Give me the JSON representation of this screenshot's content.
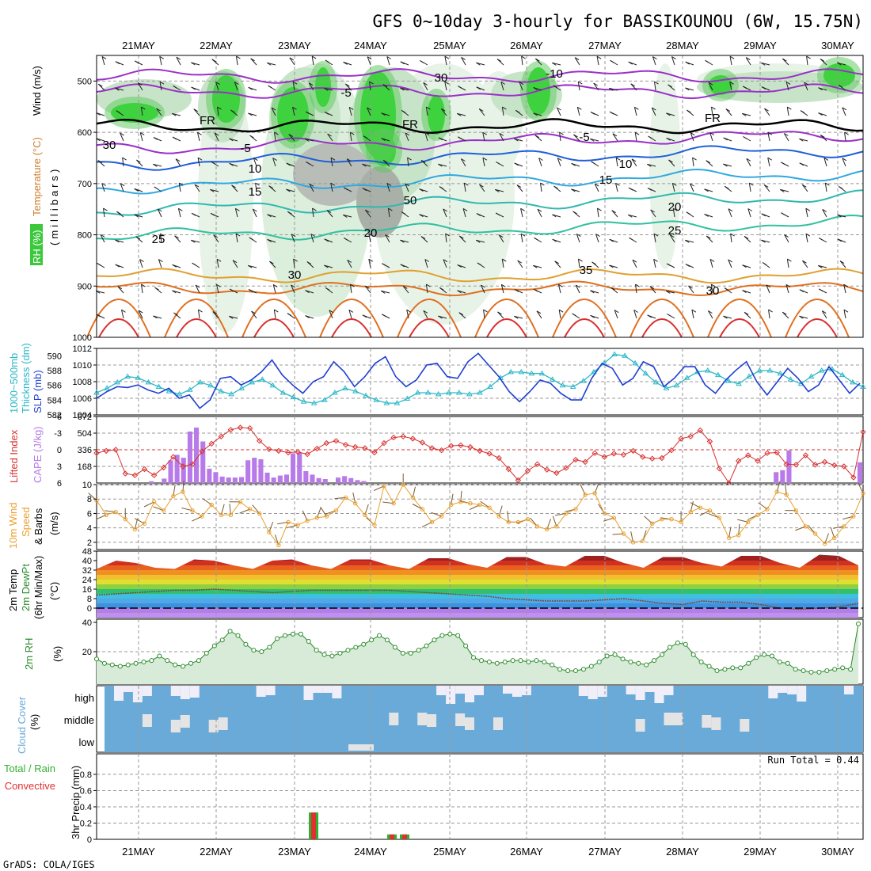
{
  "header": {
    "title": "GFS 0~10day 3-hourly for BASSIKOUNOU (6W, 15.75N)",
    "footer": "GrADS: COLA/IGES",
    "run_total": "Run Total = 0.44"
  },
  "dates": [
    "21MAY",
    "22MAY",
    "23MAY",
    "24MAY",
    "25MAY",
    "26MAY",
    "27MAY",
    "28MAY",
    "29MAY",
    "30MAY"
  ],
  "colors": {
    "slp": "#1f3fd0",
    "thickness": "#2cb8c8",
    "li": "#d83030",
    "cape": "#b77ae8",
    "wind10": "#e8a030",
    "rh2": "#2a8a2a",
    "cloud": "#6aaad8",
    "rain": "#e03030",
    "total": "#30b030"
  },
  "panel_labels": {
    "upper": {
      "rh": "RH (%)",
      "temp": "Temperature (°C)",
      "wind": "Wind (m/s)",
      "pres": "(millibars)"
    },
    "slp": {
      "left": "1000~500mb",
      "left2": "Thickness (dm)",
      "right": "SLP (mb)"
    },
    "cape": {
      "left": "Lifted Index",
      "right": "CAPE (J/kg)"
    },
    "wind10": {
      "line1": "10m Wind",
      "line2": "Speed",
      "line3": "& Barbs",
      "unit": "(m/s)"
    },
    "temp2": {
      "line1": "2m Temp",
      "line2": "2m DewPt",
      "line3": "(6hr Min/Max)",
      "unit": "(°C)"
    },
    "rh2": {
      "line1": "2m RH",
      "unit": "(%)"
    },
    "cloud": {
      "line1": "Cloud Cover",
      "unit": "(%)",
      "high": "high",
      "middle": "middle",
      "low": "low"
    },
    "precip": {
      "line1": "Total / Rain",
      "line2": "Convective",
      "line3": "3hr Precip (mm)"
    }
  },
  "chart_data": [
    {
      "type": "heatmap",
      "name": "pressure-time cross section",
      "ylabel": "(millibars)",
      "y_ticks": [
        500,
        600,
        700,
        800,
        900,
        1000
      ],
      "ylim": [
        450,
        1000
      ],
      "temperature_contours": [
        {
          "label": "-10",
          "p": 490
        },
        {
          "label": "-5",
          "p": 520
        },
        {
          "label": "FR",
          "p": 588
        },
        {
          "label": "-5",
          "p": 632
        },
        {
          "label": "10",
          "p": 662
        },
        {
          "label": "15",
          "p": 708
        },
        {
          "label": "20",
          "p": 752
        },
        {
          "label": "25",
          "p": 803
        },
        {
          "label": "30",
          "p": 880
        },
        {
          "label": "35",
          "p": 905
        }
      ],
      "contour_labels_shown": [
        "-10",
        "-5",
        "FR",
        "-5",
        "10",
        "15",
        "20",
        "25",
        "30",
        "35",
        "10",
        "15",
        "20",
        "25",
        "FR",
        "FR",
        "-5",
        "10",
        "50",
        "30",
        "30"
      ],
      "legend": [
        "RH (%)",
        "Temperature (°C)",
        "Wind (m/s)"
      ]
    },
    {
      "type": "line",
      "name": "SLP and thickness",
      "left_axis": {
        "label": "1000~500mb Thickness (dm)",
        "ticks": [
          582,
          584,
          586,
          588,
          590
        ],
        "ylim": [
          582,
          591
        ]
      },
      "right_axis": {
        "label": "SLP (mb)",
        "ticks": [
          1004,
          1006,
          1008,
          1010,
          1012
        ],
        "ylim": [
          1004,
          1012
        ]
      },
      "series": [
        {
          "name": "SLP (mb)",
          "axis": "right",
          "values": [
            1006,
            1006.8,
            1007.4,
            1007.3,
            1007.6,
            1007.0,
            1006.6,
            1007.2,
            1006.0,
            1006.4,
            1004.8,
            1005.8,
            1008.4,
            1008.6,
            1007.6,
            1008.2,
            1009.2,
            1010.6,
            1008.8,
            1007.6,
            1006.6,
            1008.0,
            1008.6,
            1010.4,
            1009.2,
            1007.4,
            1008.6,
            1010.2,
            1011.0,
            1008.6,
            1007.4,
            1008.2,
            1010.0,
            1010.2,
            1008.6,
            1008.4,
            1010.4,
            1011.4,
            1010.0,
            1008.6,
            1006.8,
            1005.6,
            1006.8,
            1008.2,
            1007.8,
            1006.6,
            1005.8,
            1005.8,
            1008.4,
            1010.2,
            1009.6,
            1007.6,
            1008.4,
            1010.4,
            1009.8,
            1007.4,
            1008.4,
            1009.8,
            1009.8,
            1007.6,
            1006.6,
            1008.2,
            1009.4,
            1010.4,
            1008.0,
            1006.4,
            1008.0,
            1009.6,
            1008.4,
            1006.8,
            1007.6,
            1009.8,
            1008.2,
            1006.6,
            1007.8
          ]
        },
        {
          "name": "Thickness (dm)",
          "axis": "left",
          "values": [
            585,
            585.6,
            586.4,
            587.2,
            587.0,
            586.4,
            585.8,
            585.2,
            584.8,
            585.4,
            586.4,
            586.0,
            585.2,
            584.8,
            585.6,
            586.4,
            586.8,
            586.0,
            585.0,
            584.4,
            583.8,
            583.6,
            584.0,
            585.0,
            585.6,
            585.2,
            584.6,
            584.0,
            583.6,
            583.6,
            584.2,
            585.0,
            585.0,
            584.8,
            585.0,
            585.0,
            584.8,
            585.0,
            585.8,
            587.0,
            587.8,
            587.8,
            587.6,
            587.6,
            586.8,
            586.0,
            585.8,
            586.6,
            587.8,
            589.0,
            590.2,
            590.0,
            589.0,
            587.6,
            586.4,
            585.6,
            586.0,
            587.0,
            587.8,
            588.0,
            587.4,
            586.6,
            586.2,
            587.2,
            588.0,
            588.0,
            587.6,
            586.8,
            586.2,
            587.2,
            588.0,
            588.2,
            587.4,
            586.4,
            585.8
          ]
        }
      ],
      "grid": true
    },
    {
      "type": "bar",
      "name": "CAPE and Lifted Index",
      "left_axis": {
        "label": "Lifted Index",
        "ticks": [
          -6,
          -3,
          0,
          3,
          6
        ],
        "ylim": [
          6,
          -6
        ]
      },
      "right_axis": {
        "label": "CAPE (J/kg)",
        "ticks": [
          168,
          336,
          504,
          672
        ],
        "ylim": [
          0,
          672
        ]
      },
      "series": [
        {
          "name": "CAPE (J/kg)",
          "type": "bar",
          "values": [
            0,
            0,
            0,
            0,
            0,
            0,
            0,
            0,
            18,
            0,
            45,
            230,
            285,
            255,
            520,
            560,
            420,
            145,
            110,
            65,
            55,
            55,
            60,
            230,
            255,
            240,
            105,
            55,
            75,
            85,
            300,
            305,
            120,
            85,
            50,
            40,
            0,
            55,
            70,
            50,
            30,
            20,
            0,
            0,
            0,
            0,
            0,
            0,
            0,
            0,
            0,
            0,
            0,
            0,
            0,
            0,
            0,
            0,
            0,
            0,
            0,
            0,
            0,
            0,
            0,
            0,
            0,
            0,
            0,
            0,
            0,
            0,
            0,
            0,
            0,
            0,
            0,
            0,
            0,
            0,
            0,
            0,
            0,
            0,
            0,
            0,
            0,
            0,
            0,
            0,
            0,
            0,
            0,
            0,
            0,
            0,
            0,
            0,
            0,
            0,
            0,
            0,
            0,
            0,
            0,
            110,
            130,
            330,
            0,
            0,
            0,
            0,
            0,
            0,
            0,
            0,
            0,
            0,
            210
          ]
        },
        {
          "name": "Lifted Index",
          "type": "line",
          "values": [
            0.6,
            0.2,
            0.0,
            4.3,
            4.6,
            3.5,
            4.6,
            3.2,
            1.3,
            3.0,
            2.6,
            0.3,
            -1.1,
            -2.4,
            -3.6,
            -4.0,
            -3.9,
            -1.6,
            -0.1,
            0.2,
            0.5,
            0.4,
            0.8,
            -0.2,
            -1.2,
            -1.6,
            -0.9,
            -0.5,
            -0.3,
            0.5,
            -1.2,
            -2.2,
            -2.4,
            -2.0,
            -1.3,
            -0.3,
            0.1,
            -0.7,
            -0.8,
            -0.5,
            0.2,
            0.7,
            1.5,
            3.5,
            5.5,
            3.8,
            2.6,
            3.6,
            4.2,
            3.3,
            1.8,
            2.2,
            0.6,
            1.3,
            0.7,
            0.9,
            0.2,
            1.3,
            1.6,
            1.5,
            0.1,
            -2.0,
            -2.4,
            -3.5,
            -1.5,
            3.4,
            6.0,
            2.0,
            1.0,
            2.0,
            0.6,
            0.5,
            2.6,
            2.7,
            1.0,
            2.7,
            2.2,
            2.8,
            3.0,
            5.0,
            -3.2
          ]
        }
      ],
      "grid": true
    },
    {
      "type": "line",
      "name": "10m wind speed",
      "ylabel": "(m/s)",
      "y_ticks": [
        2,
        4,
        6,
        8,
        10
      ],
      "ylim": [
        1,
        10
      ],
      "series": [
        {
          "name": "Speed",
          "values": [
            7.8,
            5.8,
            6.2,
            5.2,
            3.8,
            4.6,
            7.6,
            6.4,
            8.4,
            9.0,
            6.4,
            5.6,
            7.2,
            5.8,
            5.8,
            7.6,
            6.6,
            6.0,
            3.4,
            1.6,
            4.8,
            4.4,
            5.0,
            5.4,
            5.6,
            6.4,
            8.2,
            7.4,
            5.8,
            4.4,
            9.8,
            7.4,
            10.0,
            8.2,
            6.6,
            4.8,
            5.6,
            7.2,
            7.6,
            7.4,
            7.2,
            6.8,
            5.6,
            4.8,
            4.8,
            5.2,
            4.2,
            3.8,
            4.2,
            6.0,
            6.6,
            8.6,
            8.8,
            6.0,
            5.4,
            3.2,
            2.0,
            2.2,
            4.6,
            5.2,
            5.2,
            4.8,
            6.2,
            6.8,
            6.4,
            5.4,
            2.6,
            3.0,
            4.8,
            5.8,
            6.6,
            9.0,
            8.6,
            6.4,
            4.2,
            3.2,
            1.8,
            2.6,
            4.2,
            5.6,
            8.8
          ]
        }
      ],
      "grid": true
    },
    {
      "type": "area",
      "name": "2m temperature and dewpoint",
      "ylabel": "(°C)",
      "y_ticks": [
        0,
        8,
        16,
        24,
        32,
        40,
        48
      ],
      "ylim": [
        -8,
        48
      ],
      "series": [
        {
          "name": "2m Temp",
          "values": [
            33,
            40,
            38,
            34,
            33,
            41,
            40,
            36,
            33,
            40,
            41,
            36,
            33,
            41,
            41,
            36,
            33,
            42,
            42,
            37,
            34,
            43,
            43,
            37,
            35,
            44,
            44,
            38,
            34,
            43,
            43,
            38,
            35,
            44,
            44,
            38,
            34,
            45,
            44,
            36
          ]
        },
        {
          "name": "2m DewPt",
          "values": [
            11,
            12,
            13,
            14,
            15,
            15,
            16,
            15,
            14,
            13,
            14,
            15,
            15,
            15,
            15,
            15,
            14,
            13,
            12,
            11,
            10,
            8,
            7,
            6,
            6,
            6,
            7,
            8,
            6,
            4,
            3,
            6,
            5,
            5,
            3,
            0,
            -1,
            0,
            1,
            4
          ]
        }
      ],
      "grid": true
    },
    {
      "type": "line",
      "name": "2m RH",
      "ylabel": "(%)",
      "y_ticks": [
        20,
        40
      ],
      "ylim": [
        0,
        40
      ],
      "series": [
        {
          "name": "2m RH",
          "values": [
            15,
            12,
            11,
            10,
            11,
            12,
            13,
            14,
            17,
            14,
            11,
            10,
            12,
            14,
            19,
            24,
            28,
            34,
            31,
            25,
            21,
            20,
            23,
            29,
            31,
            32,
            32,
            27,
            21,
            18,
            17,
            19,
            21,
            23,
            25,
            28,
            31,
            28,
            23,
            19,
            19,
            21,
            24,
            28,
            31,
            32,
            31,
            24,
            16,
            14,
            13,
            12,
            13,
            14,
            14,
            13,
            14,
            13,
            11,
            8,
            7,
            7,
            8,
            10,
            13,
            17,
            18,
            15,
            13,
            12,
            11,
            14,
            18,
            23,
            26,
            25,
            18,
            13,
            10,
            7,
            8,
            9,
            9,
            12,
            16,
            18,
            17,
            13,
            12,
            8,
            7,
            6,
            6,
            7,
            8,
            9,
            8,
            39
          ]
        }
      ],
      "grid": true
    },
    {
      "type": "heatmap",
      "name": "cloud cover",
      "ylabel": "(%)",
      "rows": [
        "high",
        "middle",
        "low"
      ]
    },
    {
      "type": "bar",
      "name": "3hr precip",
      "ylabel": "3hr Precip (mm)",
      "y_ticks": [
        0,
        0.2,
        0.4,
        0.6,
        0.8
      ],
      "ylim": [
        0,
        1.0
      ],
      "series": [
        {
          "name": "Total",
          "values": [
            {
              "x": "23MAY 06Z",
              "y": 0.33
            },
            {
              "x": "24MAY 06Z",
              "y": 0.06
            },
            {
              "x": "24MAY 09Z",
              "y": 0.06
            }
          ]
        },
        {
          "name": "Convective",
          "values": [
            {
              "x": "23MAY 06Z",
              "y": 0.33
            },
            {
              "x": "24MAY 06Z",
              "y": 0.06
            },
            {
              "x": "24MAY 09Z",
              "y": 0.06
            }
          ]
        }
      ],
      "run_total": 0.44,
      "grid": true
    }
  ]
}
